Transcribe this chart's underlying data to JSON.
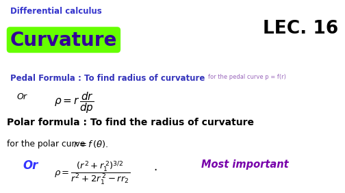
{
  "bg_color": "#ffffff",
  "title_small": "Differential calculus",
  "title_small_color": "#3333cc",
  "title_large": "Curvature",
  "title_large_color": "#330099",
  "title_large_bg": "#66ff00",
  "lec_text": "LEC. 16",
  "lec_color": "#000000",
  "pedal_main": "Pedal Formula : To find radius of curvature",
  "pedal_main_color": "#3333bb",
  "pedal_sub": "for the pedal curve p = f(r)",
  "pedal_sub_color": "#9966bb",
  "or1_color": "#000000",
  "pedal_formula_color": "#000000",
  "polar_line1": "Polar formula : To find the radius of curvature",
  "polar_line1_color": "#000000",
  "polar_line2_color": "#000000",
  "or2_color": "#3333ff",
  "polar_formula_color": "#000000",
  "most_important": "Most important",
  "most_important_color": "#7700aa"
}
